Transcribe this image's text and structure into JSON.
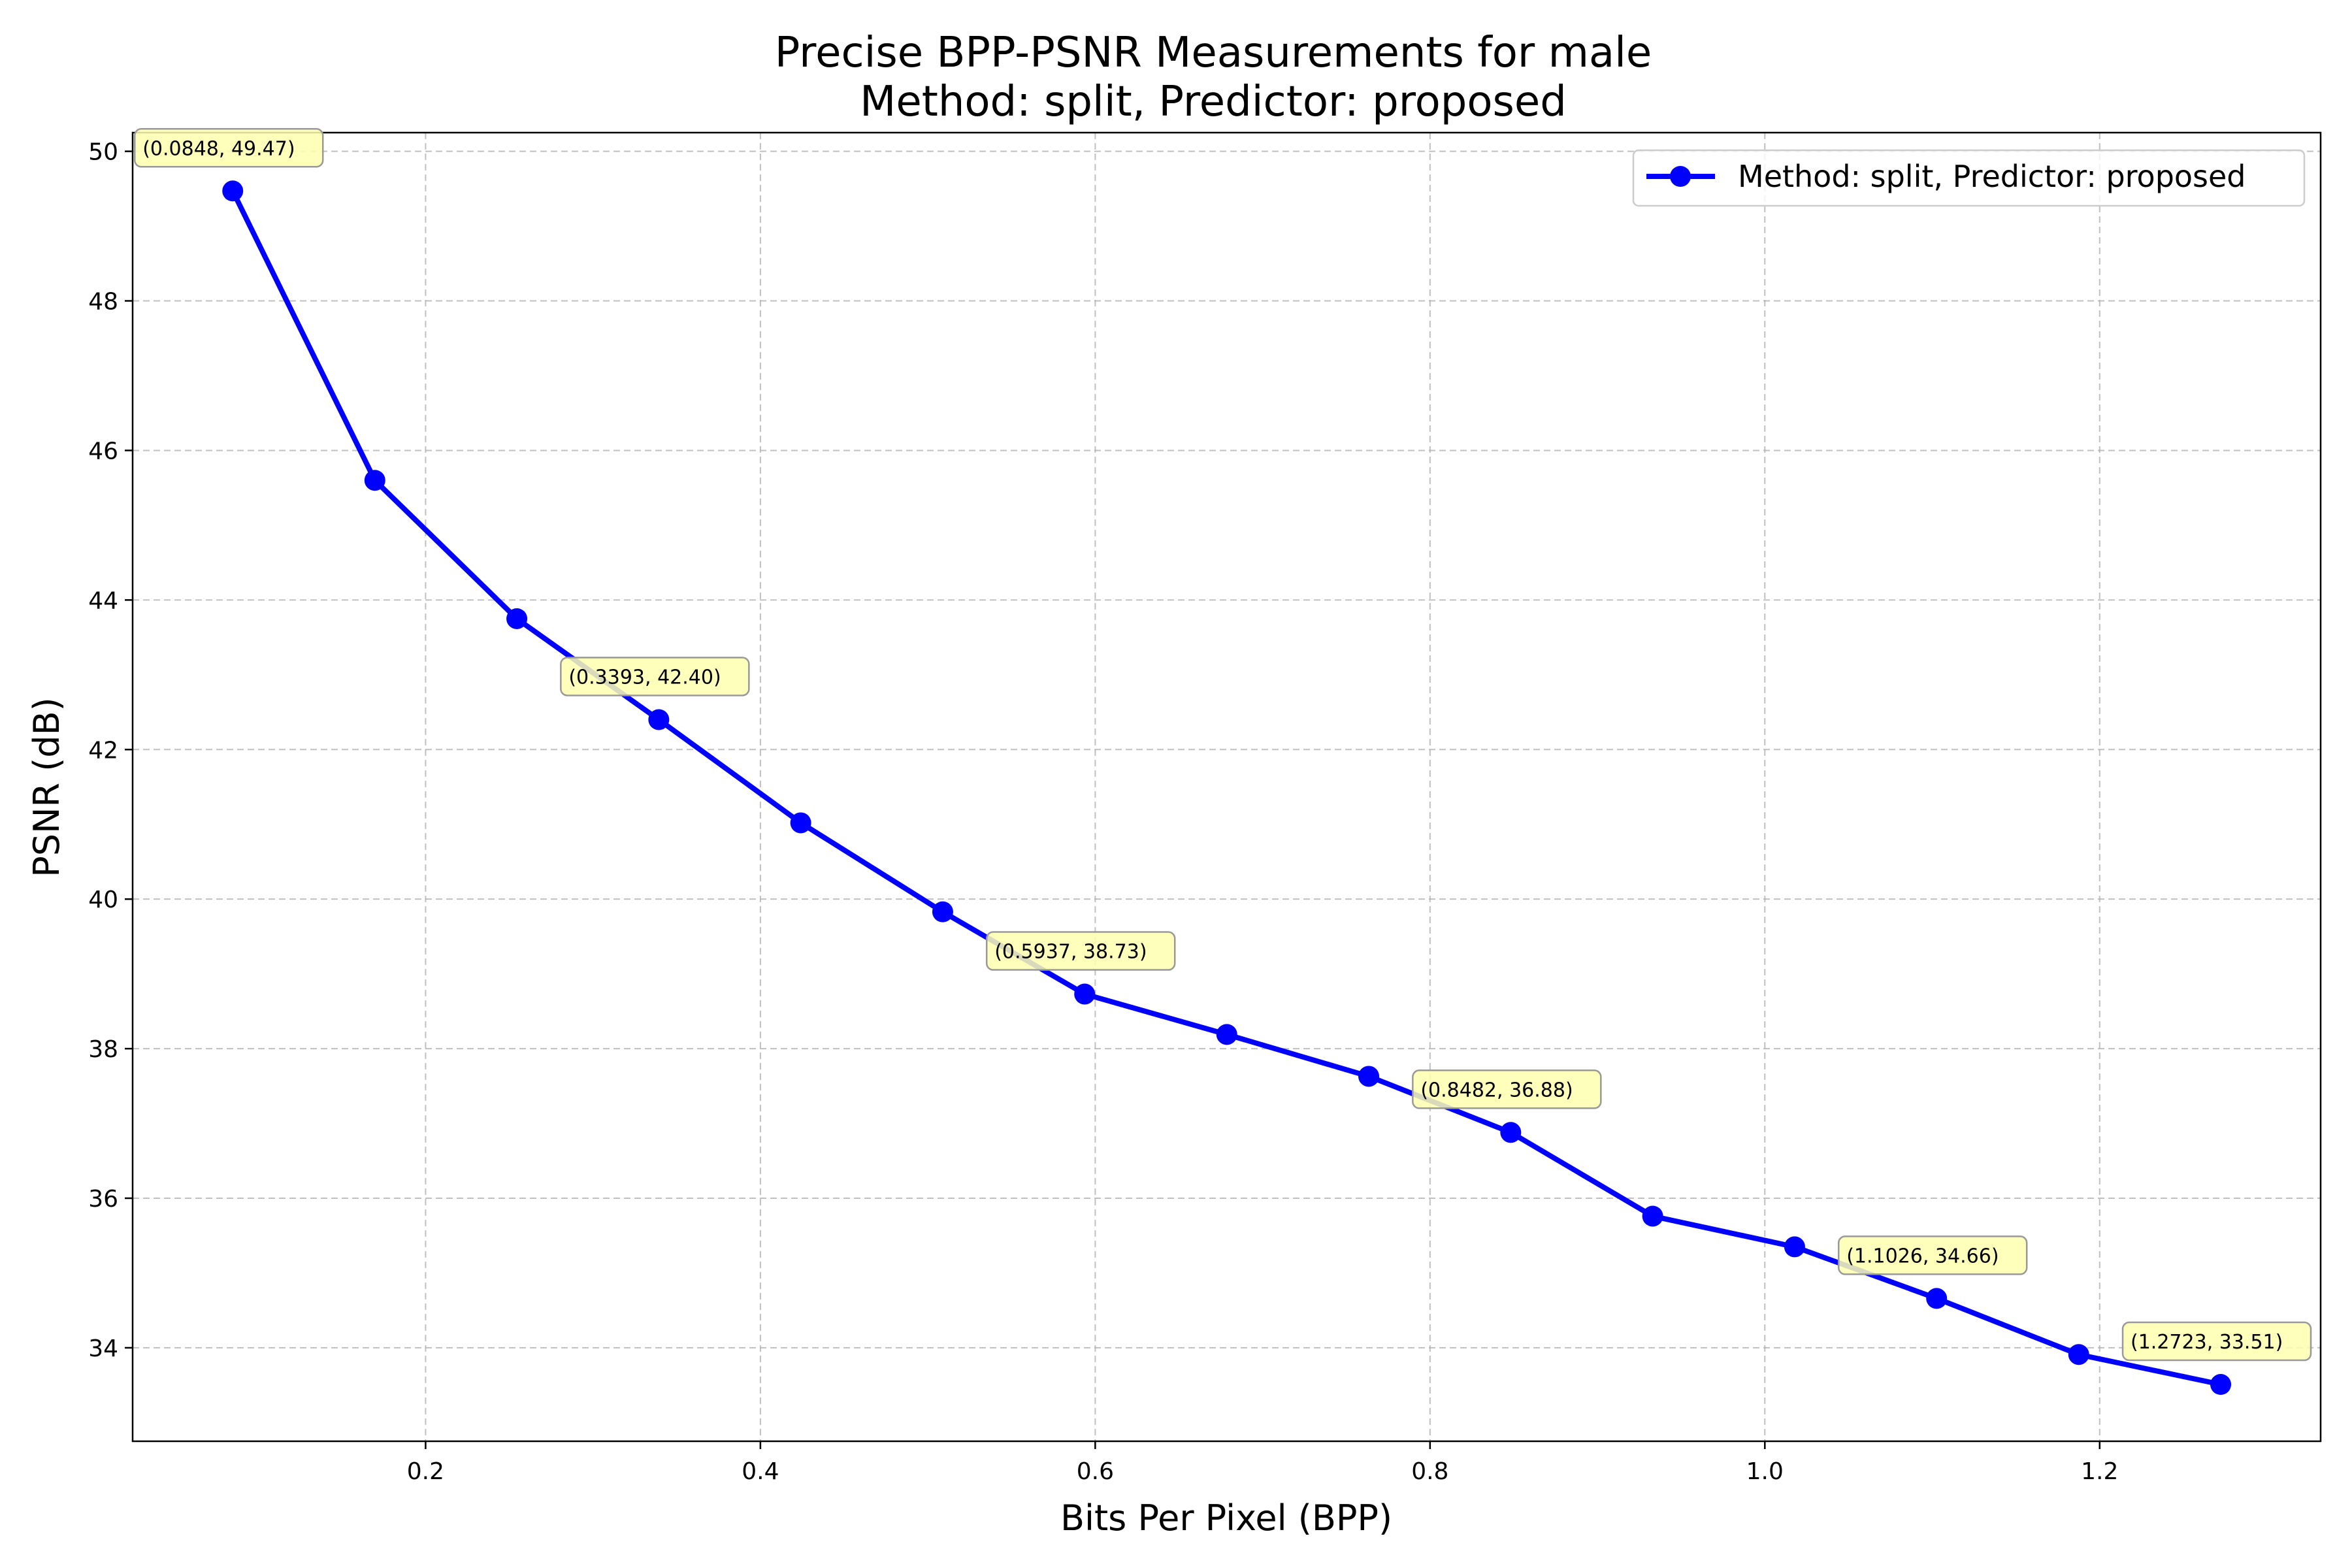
{
  "chart_data": {
    "type": "line",
    "title": "Precise BPP-PSNR Measurements for male",
    "subtitle": "Method: split, Predictor: proposed",
    "xlabel": "Bits Per Pixel (BPP)",
    "ylabel": "PSNR (dB)",
    "xlim": [
      0.025,
      1.332
    ],
    "ylim": [
      32.75,
      50.25
    ],
    "xticks": [
      0.2,
      0.4,
      0.6,
      0.8,
      1.0,
      1.2
    ],
    "xtick_labels": [
      "0.2",
      "0.4",
      "0.6",
      "0.8",
      "1.0",
      "1.2"
    ],
    "yticks": [
      34,
      36,
      38,
      40,
      42,
      44,
      46,
      48,
      50
    ],
    "ytick_labels": [
      "34",
      "36",
      "38",
      "40",
      "42",
      "44",
      "46",
      "48",
      "50"
    ],
    "grid": true,
    "legend_position": "top-right",
    "series": [
      {
        "name": "Method: split, Predictor: proposed",
        "color": "#0000ff",
        "marker": "circle",
        "x": [
          0.0848,
          0.1697,
          0.2545,
          0.3393,
          0.4241,
          0.5089,
          0.5937,
          0.6786,
          0.7634,
          0.8482,
          0.933,
          1.0178,
          1.1026,
          1.1875,
          1.2723
        ],
        "y": [
          49.47,
          45.6,
          43.75,
          42.4,
          41.02,
          39.83,
          38.73,
          38.19,
          37.63,
          36.88,
          35.76,
          35.35,
          34.66,
          33.91,
          33.51
        ]
      }
    ],
    "annotations": [
      {
        "x": 0.0848,
        "y": 49.47,
        "text": "(0.0848, 49.47)"
      },
      {
        "x": 0.3393,
        "y": 42.4,
        "text": "(0.3393, 42.40)"
      },
      {
        "x": 0.5937,
        "y": 38.73,
        "text": "(0.5937, 38.73)"
      },
      {
        "x": 0.8482,
        "y": 36.88,
        "text": "(0.8482, 36.88)"
      },
      {
        "x": 1.1026,
        "y": 34.66,
        "text": "(1.1026, 34.66)"
      },
      {
        "x": 1.2723,
        "y": 33.51,
        "text": "(1.2723, 33.51)"
      }
    ],
    "colors": {
      "line": "#0000ff",
      "grid": "#b0b0b0",
      "annotation_fill": "#ffffb0",
      "annotation_stroke": "#999999"
    }
  }
}
